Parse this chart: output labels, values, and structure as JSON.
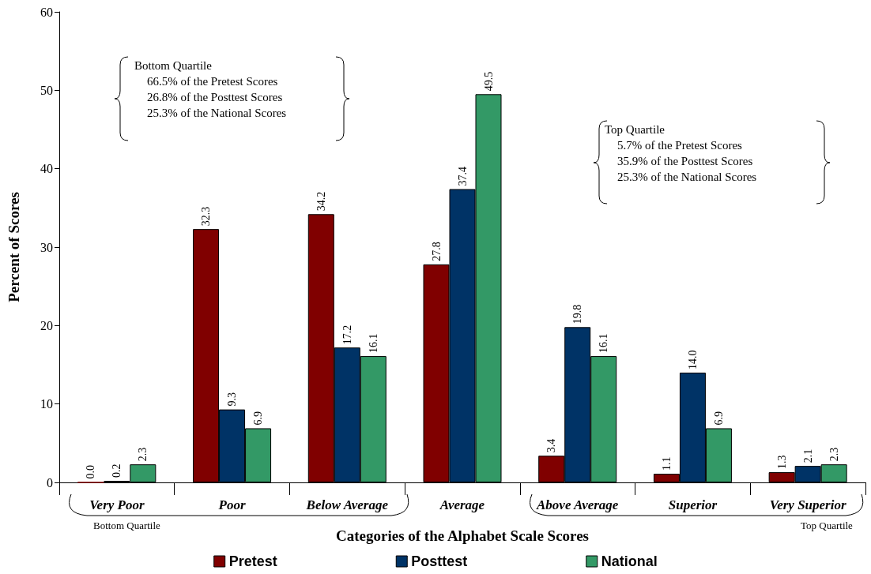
{
  "chart_data": {
    "type": "bar",
    "xlabel": "Categories of the Alphabet Scale Scores",
    "ylabel": "Percent of Scores",
    "categories": [
      "Very Poor",
      "Poor",
      "Below Average",
      "Average",
      "Above Average",
      "Superior",
      "Very Superior"
    ],
    "series": [
      {
        "name": "Pretest",
        "color": "#800000",
        "values": [
          0.0,
          32.3,
          34.2,
          27.8,
          3.4,
          1.1,
          1.3
        ],
        "value_labels": [
          "0.0",
          "32.3",
          "34.2",
          "27.8",
          "3.4",
          "1.1",
          "1.3"
        ]
      },
      {
        "name": "Posttest",
        "color": "#003366",
        "values": [
          0.2,
          9.3,
          17.2,
          37.4,
          19.8,
          14.0,
          2.1
        ],
        "value_labels": [
          "0.2",
          "9.3",
          "17.2",
          "37.4",
          "19.8",
          "14.0",
          "2.1"
        ]
      },
      {
        "name": "National",
        "color": "#339966",
        "values": [
          2.3,
          6.9,
          16.1,
          49.5,
          16.1,
          6.9,
          2.3
        ],
        "value_labels": [
          "2.3",
          "6.9",
          "16.1",
          "49.5",
          "16.1",
          "6.9",
          "2.3"
        ]
      }
    ],
    "ylim": [
      0,
      60
    ],
    "yticks": [
      0,
      10,
      20,
      30,
      40,
      50,
      60
    ],
    "grid": false,
    "legend": "bottom",
    "annotations": [
      "Bottom Quartile\n66.5% of the Pretest Scores\n26.8% of the Posttest Scores\n25.3% of the National Scores",
      "Top Quartile\n5.7% of the Pretest Scores\n35.9% of the Posttest Scores\n25.3% of the National Scores",
      "Bottom Quartile",
      "Top Quartile"
    ]
  }
}
